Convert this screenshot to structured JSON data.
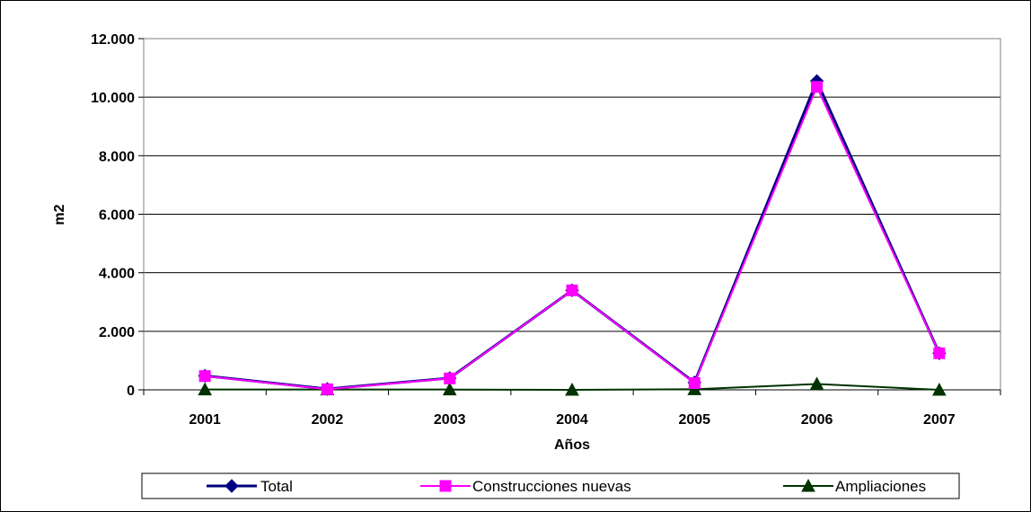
{
  "chart_data": {
    "type": "line",
    "xlabel": "Años",
    "ylabel": "m2",
    "categories": [
      "2001",
      "2002",
      "2003",
      "2004",
      "2005",
      "2006",
      "2007"
    ],
    "ylim": [
      0,
      12000
    ],
    "y_ticks": [
      0,
      2000,
      4000,
      6000,
      8000,
      10000,
      12000
    ],
    "y_tick_labels": [
      "0",
      "2.000",
      "4.000",
      "6.000",
      "8.000",
      "10.000",
      "12.000"
    ],
    "grid": true,
    "legend_position": "bottom",
    "series": [
      {
        "name": "Total",
        "color": "#000080",
        "marker": "diamond",
        "values": [
          480,
          30,
          400,
          3400,
          250,
          10550,
          1250
        ]
      },
      {
        "name": "Construcciones nuevas",
        "color": "#ff00ff",
        "marker": "square",
        "values": [
          470,
          20,
          390,
          3400,
          230,
          10350,
          1250
        ]
      },
      {
        "name": "Ampliaciones",
        "color": "#003300",
        "marker": "triangle",
        "values": [
          10,
          10,
          10,
          0,
          20,
          200,
          0
        ]
      }
    ]
  }
}
